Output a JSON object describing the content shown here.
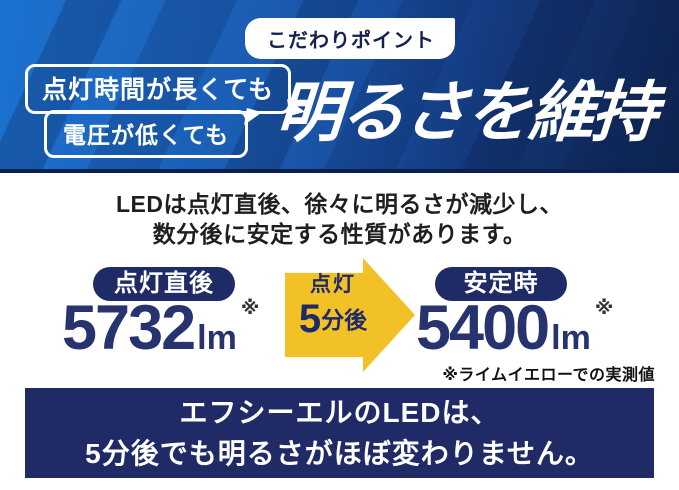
{
  "header": {
    "badge_label": "こだわりポイント",
    "bubble_long_lighting": "点灯時間が長くても",
    "bubble_low_voltage": "電圧が低くても",
    "main_title": "明るさを維持"
  },
  "explanation": {
    "line1": "LEDは点灯直後、徐々に明るさが減少し、",
    "line2": "数分後に安定する性質があります。"
  },
  "comparison": {
    "before": {
      "label": "点灯直後",
      "value": "5732",
      "unit": "lm",
      "note_mark": "※"
    },
    "arrow": {
      "line1": "点灯",
      "big": "5",
      "rest": "分後"
    },
    "after": {
      "label": "安定時",
      "value": "5400",
      "unit": "lm",
      "note_mark": "※"
    },
    "footnote": "※ライムイエローでの実測値"
  },
  "banner": {
    "line1": "エフシーエルのLEDは、",
    "line2": "5分後でも明るさがほぼ変わりません。"
  },
  "colors": {
    "header_blue_left": "#1c72d0",
    "header_blue_right": "#132b5c",
    "navy": "#1f2a67",
    "number_navy": "#26336f",
    "arrow_yellow": "#f1c127",
    "white": "#ffffff"
  }
}
